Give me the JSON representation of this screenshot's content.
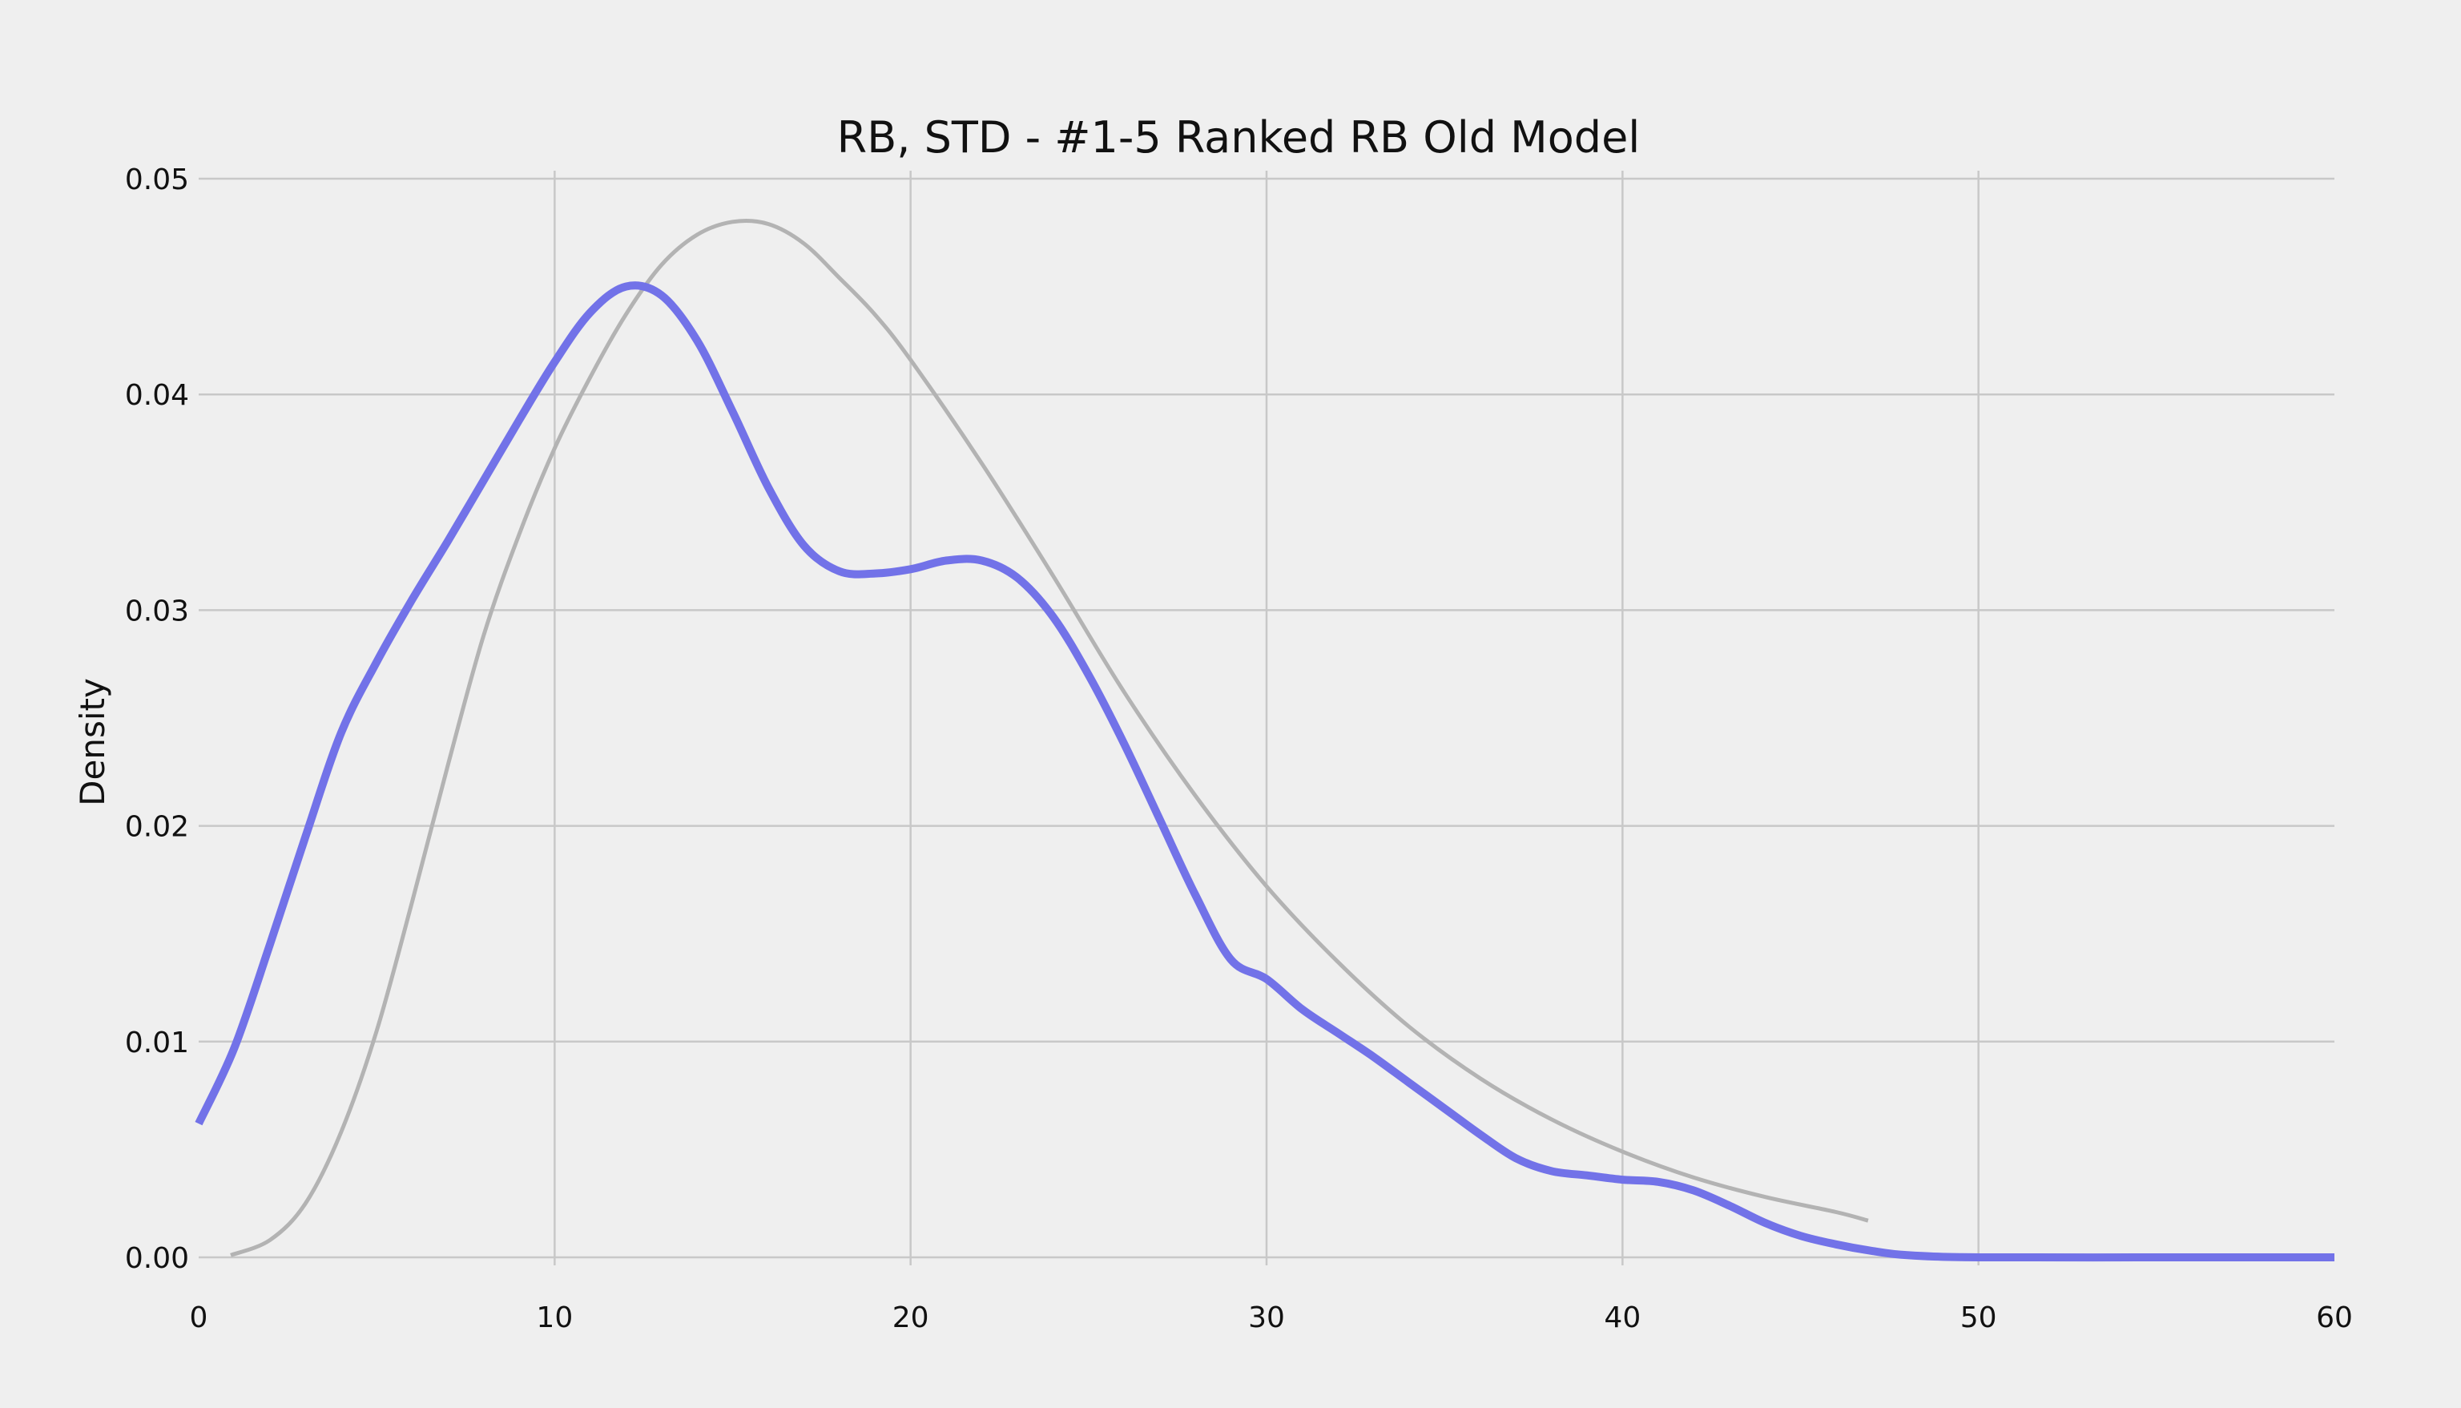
{
  "chart_data": {
    "type": "line",
    "title": "RB, STD - #1-5 Ranked RB Old Model",
    "xlabel": "",
    "ylabel": "Density",
    "xlim": [
      0,
      60
    ],
    "ylim": [
      0,
      0.05
    ],
    "x_ticks": [
      0,
      10,
      20,
      30,
      40,
      50,
      60
    ],
    "x_tick_labels": [
      "0",
      "10",
      "20",
      "30",
      "40",
      "50",
      "60"
    ],
    "y_ticks": [
      0,
      0.01,
      0.02,
      0.03,
      0.04,
      0.05
    ],
    "y_tick_labels": [
      "0.00",
      "0.01",
      "0.02",
      "0.03",
      "0.04",
      "0.05"
    ],
    "grid": true,
    "legend": "none",
    "background": "#efefef",
    "grid_color": "#c8c8c8",
    "series": [
      {
        "color": "#b3b3b3",
        "x": [
          0.9,
          2,
          3,
          4,
          5,
          6,
          7,
          8,
          9,
          10,
          11,
          12,
          13,
          14,
          15,
          16,
          17,
          18,
          19,
          20,
          22,
          24,
          26,
          28,
          30,
          32,
          34,
          36,
          38,
          40,
          42,
          44,
          46,
          46.9
        ],
        "y": [
          0.0001,
          0.0008,
          0.0025,
          0.0058,
          0.0105,
          0.0165,
          0.0228,
          0.0288,
          0.0335,
          0.0375,
          0.0408,
          0.0437,
          0.046,
          0.0474,
          0.048,
          0.0479,
          0.047,
          0.0454,
          0.0437,
          0.0416,
          0.0368,
          0.0316,
          0.0262,
          0.0214,
          0.0172,
          0.0137,
          0.0107,
          0.0083,
          0.0064,
          0.0049,
          0.0037,
          0.0028,
          0.0021,
          0.0017
        ]
      },
      {
        "color": "#7272e8",
        "x": [
          0,
          1,
          2,
          3,
          4,
          5,
          6,
          7,
          8,
          9,
          10,
          11,
          12,
          13,
          14,
          15,
          16,
          17,
          18,
          19,
          20,
          21,
          22,
          23,
          24,
          25,
          26,
          27,
          28,
          29,
          30,
          31,
          32,
          33,
          34,
          35,
          36,
          37,
          38,
          39,
          40,
          41,
          42,
          43,
          44,
          45,
          46,
          47,
          48,
          50,
          55,
          60
        ],
        "y": [
          0.0062,
          0.0097,
          0.0145,
          0.0195,
          0.0243,
          0.0276,
          0.0305,
          0.0332,
          0.036,
          0.0388,
          0.0415,
          0.0438,
          0.045,
          0.0446,
          0.0425,
          0.0392,
          0.0357,
          0.033,
          0.0318,
          0.0317,
          0.0319,
          0.0323,
          0.0323,
          0.0315,
          0.0297,
          0.027,
          0.0238,
          0.0203,
          0.0168,
          0.0138,
          0.0129,
          0.0115,
          0.0104,
          0.0093,
          0.0081,
          0.0069,
          0.0057,
          0.0046,
          0.004,
          0.0038,
          0.0036,
          0.0035,
          0.0031,
          0.0024,
          0.0016,
          0.001,
          0.0006,
          0.0003,
          0.0001,
          0.0,
          0.0,
          0.0
        ]
      }
    ]
  }
}
